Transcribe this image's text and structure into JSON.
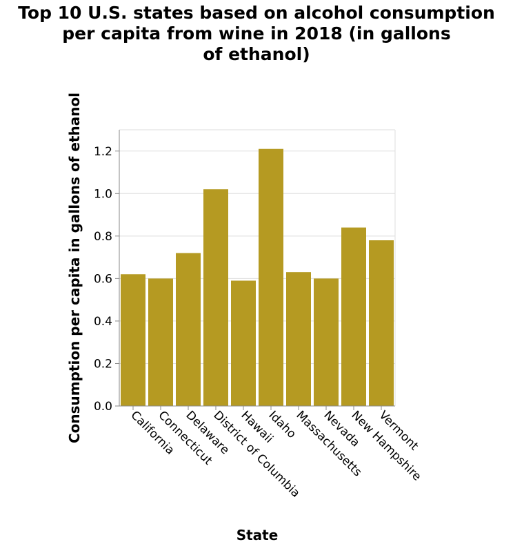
{
  "chart_data": {
    "type": "bar",
    "title_lines": [
      "Top 10 U.S. states based on alcohol consumption",
      "per capita from wine in 2018 (in gallons",
      "of ethanol)"
    ],
    "xlabel": "State",
    "ylabel": "Consumption per capita in gallons of ethanol",
    "categories": [
      "California",
      "Connecticut",
      "Delaware",
      "District of Columbia",
      "Hawaii",
      "Idaho",
      "Massachusetts",
      "Nevada",
      "New Hampshire",
      "Vermont"
    ],
    "values": [
      0.62,
      0.6,
      0.72,
      1.02,
      0.59,
      1.21,
      0.63,
      0.6,
      0.84,
      0.78
    ],
    "ylim": [
      0,
      1.3
    ],
    "yticks": [
      "0.0",
      "0.2",
      "0.4",
      "0.6",
      "0.8",
      "1.0",
      "1.2"
    ],
    "grid": true,
    "bar_color": "#b59a22",
    "grid_color": "#dddddd"
  }
}
